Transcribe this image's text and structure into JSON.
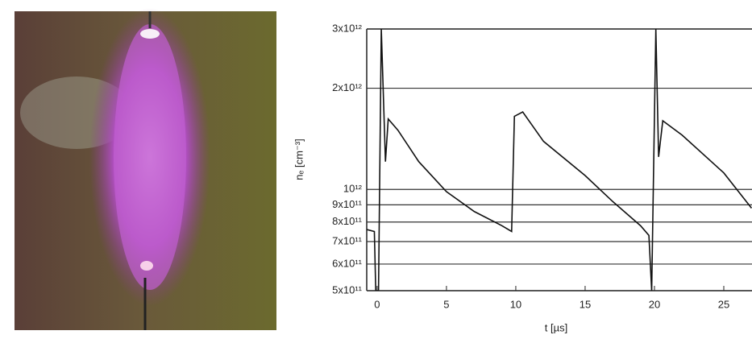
{
  "chart_data": {
    "type": "line",
    "x_label": "t [µs]",
    "y_label": "nₑ [cm⁻³]",
    "x": [
      -0.75,
      -0.2,
      -0.1,
      0.1,
      0.3,
      0.6,
      0.8,
      1.5,
      3,
      5,
      7,
      9,
      9.7,
      9.9,
      10.5,
      12,
      15,
      17,
      19,
      19.6,
      19.8,
      20.1,
      20.3,
      20.6,
      22,
      25,
      27
    ],
    "series": [
      {
        "color": "#111",
        "values": [
          760000000000.0,
          750000000000.0,
          500000000000.0,
          500000000000.0,
          3000000000000.0,
          1210000000000.0,
          1620000000000.0,
          1500000000000.0,
          1210000000000.0,
          985000000000.0,
          860000000000.0,
          780000000000.0,
          750000000000.0,
          1650000000000.0,
          1700000000000.0,
          1390000000000.0,
          1100000000000.0,
          920000000000.0,
          780000000000.0,
          730000000000.0,
          500000000000.0,
          3000000000000.0,
          1250000000000.0,
          1600000000000.0,
          1450000000000.0,
          1120000000000.0,
          880000000000.0
        ]
      }
    ],
    "xlim": [
      -0.75,
      27
    ],
    "ylim": [
      500000000000.0,
      3000000000000.0
    ],
    "log_y": true,
    "grid": true,
    "xticks": [
      0,
      5,
      10,
      15,
      20,
      25
    ],
    "yticks": [
      {
        "value": 500000000000.0,
        "label": "5x10¹¹"
      },
      {
        "value": 600000000000.0,
        "label": "6x10¹¹"
      },
      {
        "value": 700000000000.0,
        "label": "7x10¹¹"
      },
      {
        "value": 800000000000.0,
        "label": "8x10¹¹"
      },
      {
        "value": 900000000000.0,
        "label": "9x10¹¹"
      },
      {
        "value": 1000000000000.0,
        "label": "10¹²"
      },
      {
        "value": 2000000000000.0,
        "label": "2x10¹²"
      },
      {
        "value": 3000000000000.0,
        "label": "3x10¹²"
      }
    ]
  }
}
